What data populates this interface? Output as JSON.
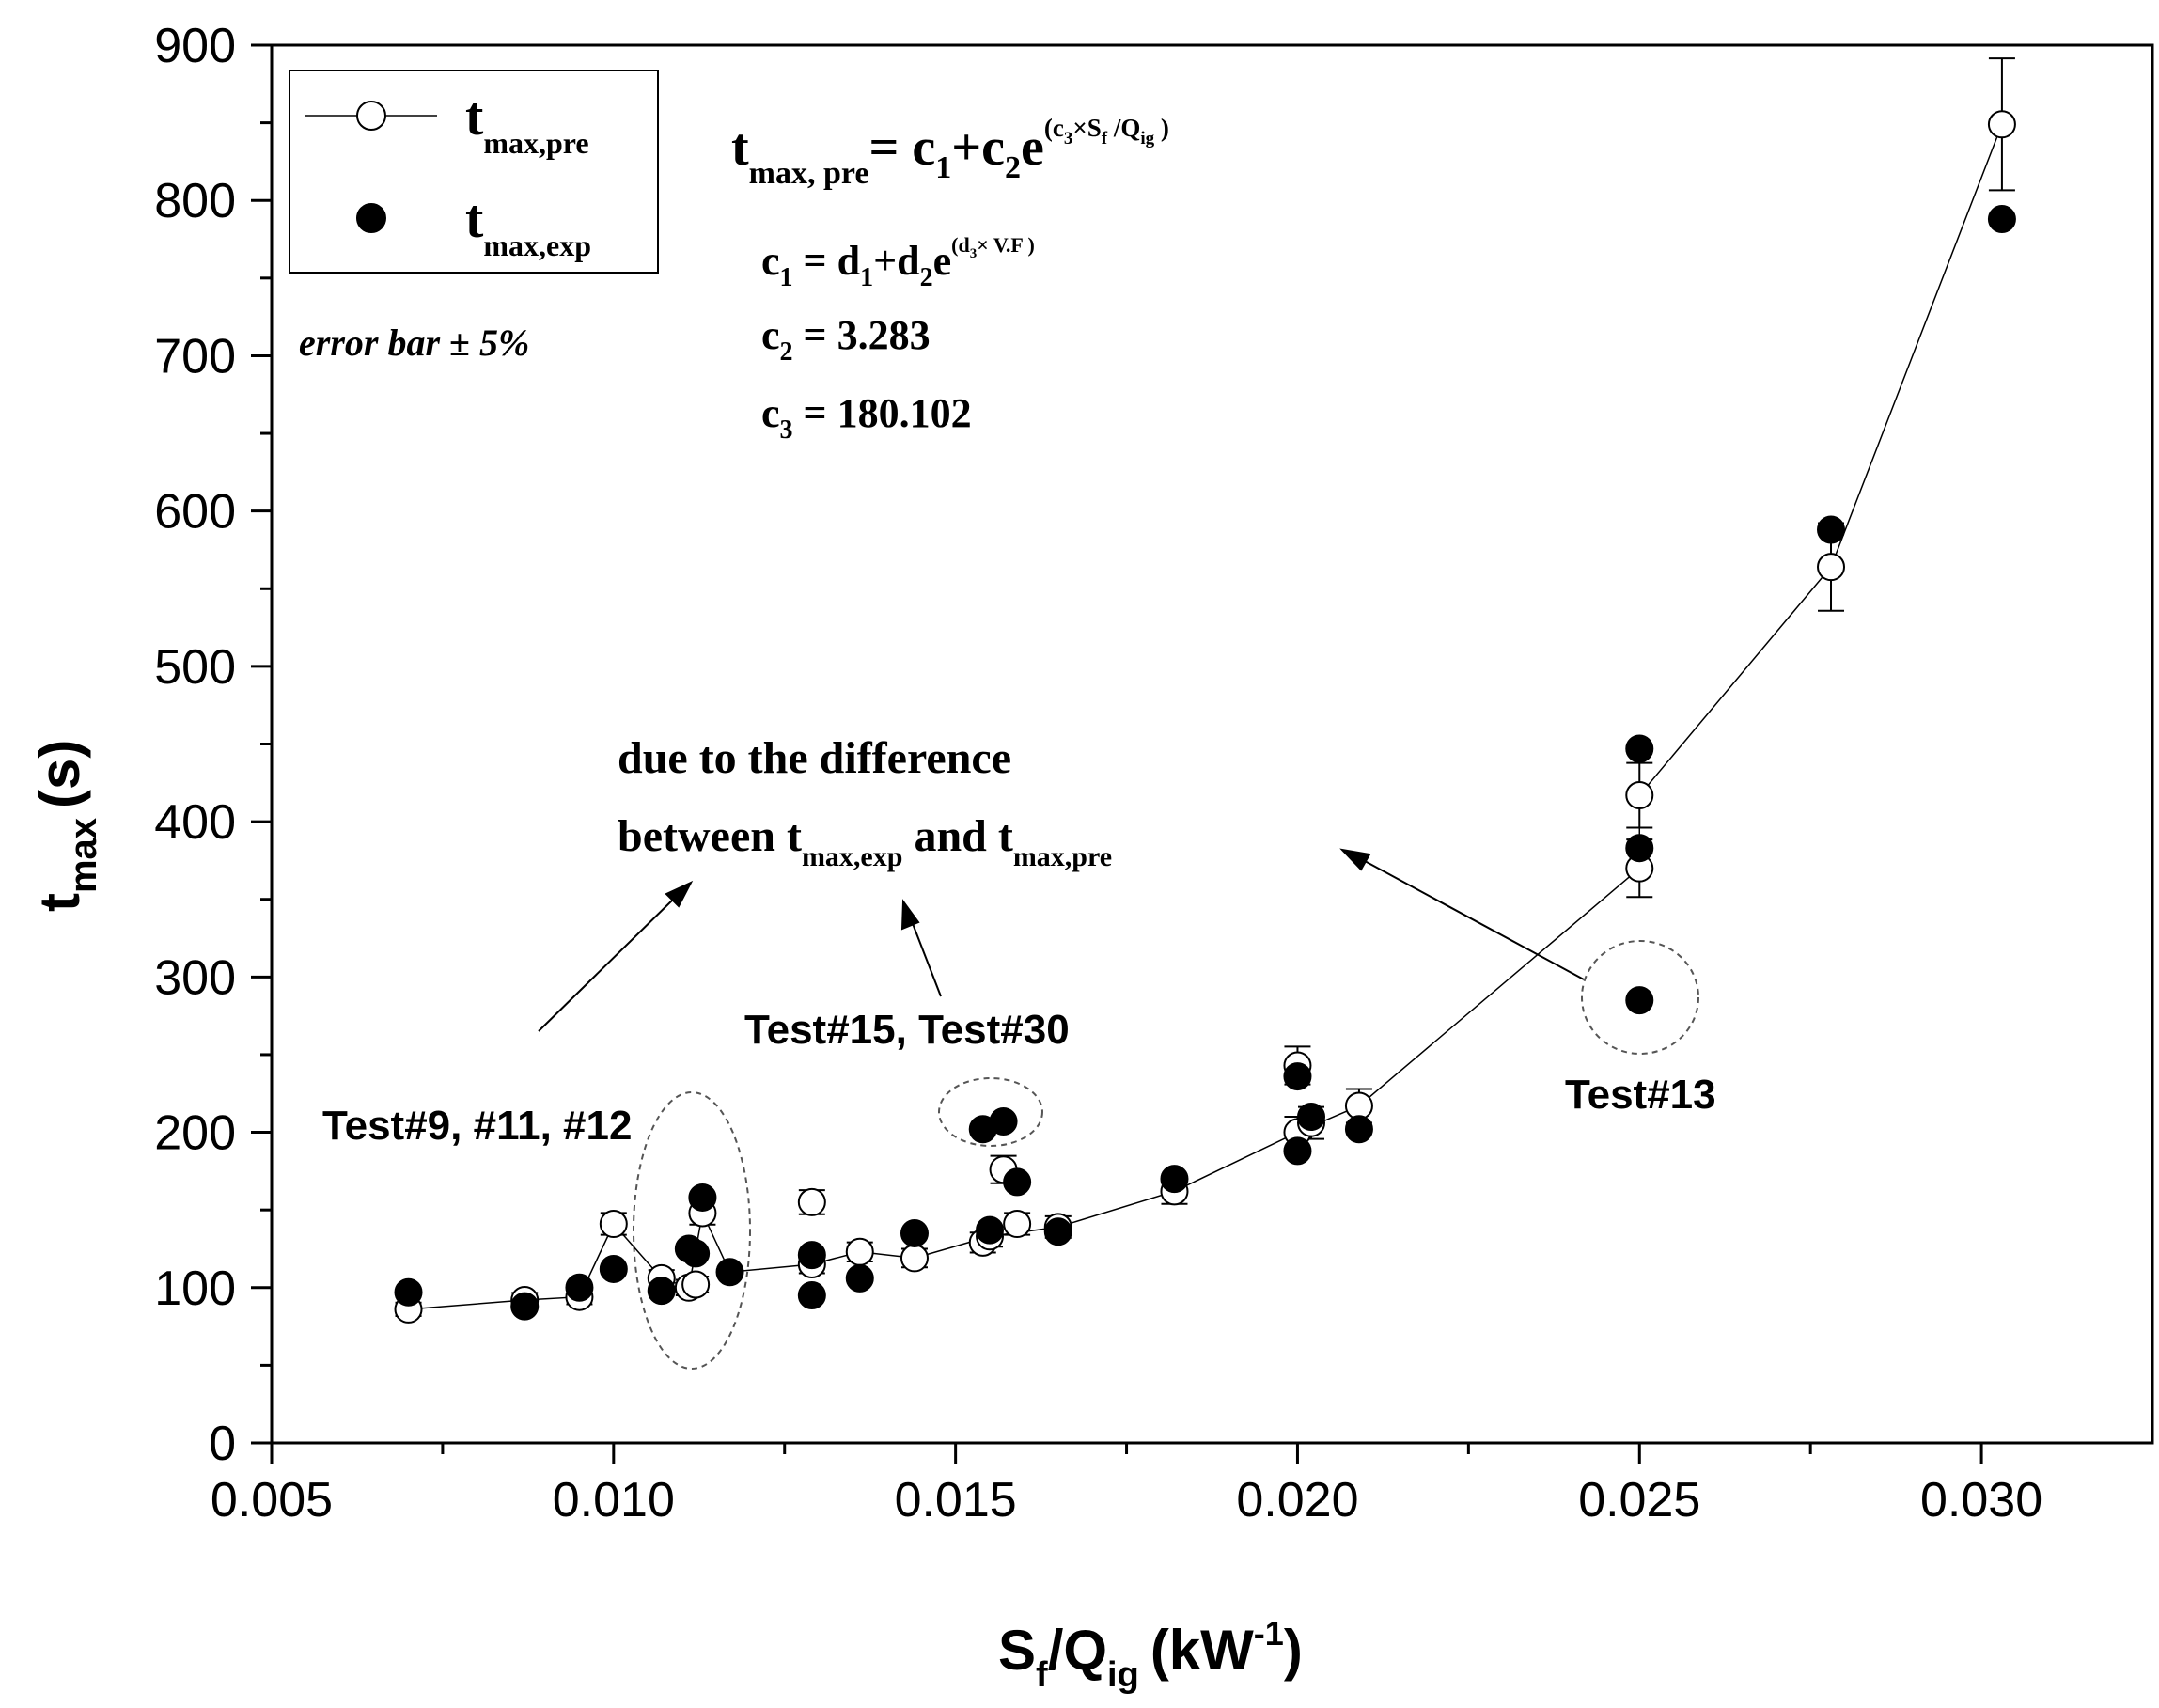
{
  "chart_data": {
    "type": "scatter",
    "xlabel": {
      "s": "S",
      "sub_f": "f",
      "slash_q": "/Q",
      "sub_ig": "ig",
      "unit": "(kW",
      "exp": "-1",
      "close": ")"
    },
    "ylabel": {
      "t": "t",
      "sub": "max",
      "unit": "(s)"
    },
    "xlim": [
      0.005,
      0.0325
    ],
    "ylim": [
      0,
      900
    ],
    "xticks": [
      0.005,
      0.01,
      0.015,
      0.02,
      0.025,
      0.03
    ],
    "xtick_labels": [
      "0.005",
      "0.010",
      "0.015",
      "0.020",
      "0.025",
      "0.030"
    ],
    "yticks": [
      0,
      100,
      200,
      300,
      400,
      500,
      600,
      700,
      800,
      900
    ],
    "ytick_labels": [
      "0",
      "100",
      "200",
      "300",
      "400",
      "500",
      "600",
      "700",
      "800",
      "900"
    ],
    "legend": {
      "position": "top-left",
      "pre": {
        "t": "t",
        "sub": "max,pre"
      },
      "exp": {
        "t": "t",
        "sub": "max,exp"
      }
    },
    "series": [
      {
        "name": "t_max,pre",
        "marker": "open-circle",
        "line": true,
        "error_bars": true,
        "error_fraction": 0.05,
        "points": [
          [
            0.007,
            86
          ],
          [
            0.0087,
            92
          ],
          [
            0.0095,
            94
          ],
          [
            0.01,
            141
          ],
          [
            0.0107,
            106
          ],
          [
            0.0111,
            100
          ],
          [
            0.0112,
            102
          ],
          [
            0.0113,
            148
          ],
          [
            0.0129,
            155
          ],
          [
            0.0129,
            115
          ],
          [
            0.0136,
            123
          ],
          [
            0.0144,
            119
          ],
          [
            0.0154,
            129
          ],
          [
            0.0155,
            133
          ],
          [
            0.0157,
            176
          ],
          [
            0.0159,
            141
          ],
          [
            0.0165,
            139
          ],
          [
            0.0182,
            162
          ],
          [
            0.02,
            200
          ],
          [
            0.02,
            243
          ],
          [
            0.0202,
            206
          ],
          [
            0.0209,
            217
          ],
          [
            0.025,
            370
          ],
          [
            0.025,
            417
          ],
          [
            0.0278,
            564
          ],
          [
            0.0303,
            849
          ]
        ],
        "line_points": [
          [
            0.007,
            86
          ],
          [
            0.0087,
            92
          ],
          [
            0.0095,
            94
          ],
          [
            0.01,
            141
          ],
          [
            0.0107,
            106
          ],
          [
            0.0111,
            100
          ],
          [
            0.0113,
            148
          ],
          [
            0.0117,
            110
          ],
          [
            0.0129,
            115
          ],
          [
            0.0136,
            123
          ],
          [
            0.0144,
            119
          ],
          [
            0.0155,
            133
          ],
          [
            0.0165,
            139
          ],
          [
            0.0182,
            162
          ],
          [
            0.02,
            200
          ],
          [
            0.0209,
            217
          ],
          [
            0.025,
            370
          ],
          [
            0.025,
            417
          ],
          [
            0.0278,
            564
          ],
          [
            0.0303,
            849
          ]
        ]
      },
      {
        "name": "t_max,exp",
        "marker": "filled-circle",
        "points": [
          [
            0.007,
            97
          ],
          [
            0.0087,
            88
          ],
          [
            0.0095,
            100
          ],
          [
            0.01,
            112
          ],
          [
            0.0107,
            98
          ],
          [
            0.0111,
            125
          ],
          [
            0.0112,
            122
          ],
          [
            0.0113,
            158
          ],
          [
            0.0117,
            110
          ],
          [
            0.0129,
            121
          ],
          [
            0.0129,
            95
          ],
          [
            0.0136,
            106
          ],
          [
            0.0144,
            135
          ],
          [
            0.0154,
            202
          ],
          [
            0.0155,
            137
          ],
          [
            0.0157,
            207
          ],
          [
            0.0159,
            168
          ],
          [
            0.0165,
            136
          ],
          [
            0.0182,
            170
          ],
          [
            0.02,
            236
          ],
          [
            0.02,
            188
          ],
          [
            0.0202,
            210
          ],
          [
            0.0209,
            202
          ],
          [
            0.025,
            447
          ],
          [
            0.025,
            383
          ],
          [
            0.025,
            285
          ],
          [
            0.0278,
            588
          ],
          [
            0.0303,
            788
          ]
        ]
      }
    ],
    "annotations": {
      "error_bar_note": "error bar ± 5%",
      "equation_main": {
        "t": "t",
        "sub": "max, pre",
        "rhs": "= c",
        "c1sub": "1",
        "plus": "+c",
        "c2sub": "2",
        "e": "e",
        "exp_open": "(c",
        "exp_c3sub": "3",
        "exp_times": "×S",
        "exp_fsub": "f",
        "exp_slash": " /Q",
        "exp_igsub": "ig",
        "exp_close": " )"
      },
      "eq_c1": {
        "c": "c",
        "sub": "1",
        "rhs": " = d",
        "d1sub": "1",
        "plus": "+d",
        "d2sub": "2",
        "e": "e",
        "exp_open": "(d",
        "exp_d3sub": "3",
        "exp_rest": "× V.F )"
      },
      "eq_c2": {
        "c": "c",
        "sub": "2",
        "rhs": " = 3.283"
      },
      "eq_c3": {
        "c": "c",
        "sub": "3",
        "rhs": " = 180.102"
      },
      "difference_line1": "due to the difference",
      "difference_line2": {
        "a": "between t",
        "sub1": "max,exp",
        "b": " and  t",
        "sub2": "max,pre"
      },
      "test_9_11_12": "Test#9, #11, #12",
      "test_15_30": "Test#15, Test#30",
      "test_13": "Test#13"
    }
  }
}
